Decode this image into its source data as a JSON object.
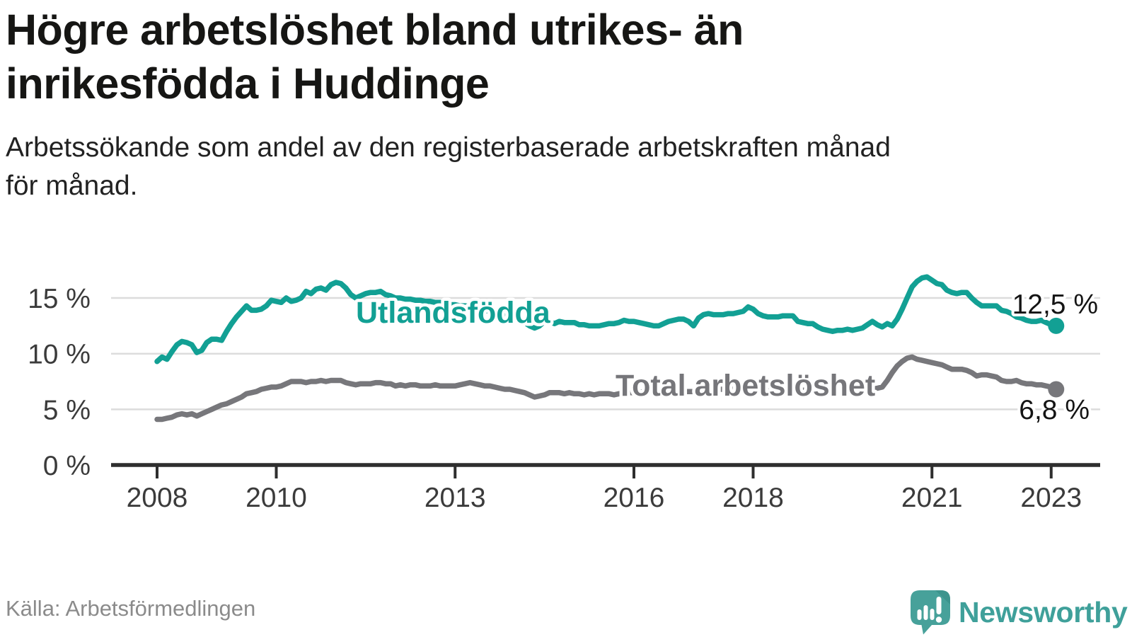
{
  "header": {
    "title_lines": [
      "Högre arbetslöshet bland utrikes- än",
      "inrikesfödda i Huddinge"
    ],
    "subtitle_lines": [
      "Arbetssökande som andel av den registerbaserade arbetskraften månad",
      "för månad."
    ]
  },
  "footer": {
    "source": "Källa: Arbetsförmedlingen",
    "brand": "Newsworthy",
    "brand_icon": "newsworthy-speech-bubble-bar-chart-icon",
    "brand_color": "#3fa09a"
  },
  "colors": {
    "background": "#ffffff",
    "gridline": "#dcdcdc",
    "axis": "#2e2e2e",
    "tick_text": "#3b3b3b",
    "title_text": "#161614",
    "source_text": "#8b8b8b"
  },
  "chart_data": {
    "type": "line",
    "title": "Högre arbetslöshet bland utrikes- än inrikesfödda i Huddinge",
    "subtitle": "Arbetssökande som andel av den registerbaserade arbetskraften månad för månad.",
    "xlabel": "",
    "ylabel": "",
    "grid": "horizontal",
    "legend_position": "inline-labels",
    "x_start_year": 2008,
    "x_step_months": 1,
    "x_end": "2023-02",
    "x_tick_years": [
      2008,
      2010,
      2013,
      2016,
      2018,
      2021,
      2023
    ],
    "x_tick_labels": [
      "2008",
      "2010",
      "2013",
      "2016",
      "2018",
      "2021",
      "2023"
    ],
    "y_ticks": [
      0,
      5,
      10,
      15
    ],
    "y_tick_labels": [
      "0 %",
      "5 %",
      "10 %",
      "15 %"
    ],
    "ylim": [
      0,
      17.6
    ],
    "series": [
      {
        "name": "Utlandsfödda",
        "color": "#12a094",
        "end_label": "12,5 %",
        "end_value": 12.5,
        "values": [
          9.3,
          9.7,
          9.5,
          10.2,
          10.8,
          11.1,
          11.0,
          10.8,
          10.1,
          10.3,
          11.0,
          11.3,
          11.3,
          11.2,
          12.0,
          12.7,
          13.3,
          13.8,
          14.3,
          13.9,
          13.9,
          14.0,
          14.3,
          14.8,
          14.7,
          14.6,
          15.0,
          14.7,
          14.8,
          15.0,
          15.6,
          15.4,
          15.8,
          15.9,
          15.7,
          16.2,
          16.4,
          16.3,
          15.9,
          15.3,
          15.0,
          15.2,
          15.4,
          15.5,
          15.5,
          15.6,
          15.3,
          15.2,
          15.0,
          15.0,
          14.9,
          14.9,
          14.8,
          14.8,
          14.7,
          14.7,
          14.6,
          14.6,
          14.5,
          14.4,
          14.4,
          14.3,
          14.3,
          14.2,
          14.1,
          14.0,
          13.9,
          13.8,
          13.7,
          13.6,
          13.5,
          13.3,
          13.2,
          13.0,
          12.8,
          12.5,
          12.3,
          12.5,
          12.9,
          12.9,
          12.7,
          12.9,
          12.8,
          12.8,
          12.8,
          12.6,
          12.6,
          12.5,
          12.5,
          12.5,
          12.6,
          12.7,
          12.7,
          12.8,
          13.0,
          12.9,
          12.9,
          12.8,
          12.7,
          12.6,
          12.5,
          12.5,
          12.7,
          12.9,
          13.0,
          13.1,
          13.1,
          12.9,
          12.5,
          13.2,
          13.5,
          13.6,
          13.5,
          13.5,
          13.5,
          13.6,
          13.6,
          13.7,
          13.8,
          14.2,
          14.0,
          13.6,
          13.4,
          13.3,
          13.3,
          13.3,
          13.4,
          13.4,
          13.4,
          12.9,
          12.8,
          12.7,
          12.7,
          12.4,
          12.2,
          12.1,
          12.0,
          12.1,
          12.1,
          12.2,
          12.1,
          12.2,
          12.3,
          12.6,
          12.9,
          12.6,
          12.4,
          12.7,
          12.5,
          13.1,
          14.0,
          15.0,
          16.0,
          16.5,
          16.8,
          16.9,
          16.6,
          16.3,
          16.2,
          15.7,
          15.5,
          15.4,
          15.5,
          15.5,
          15.0,
          14.6,
          14.3,
          14.3,
          14.3,
          14.3,
          13.9,
          13.8,
          13.6,
          13.3,
          13.2,
          13.0,
          12.9,
          12.9,
          13.0,
          12.8,
          12.6,
          12.5
        ]
      },
      {
        "name": "Total arbetslöshet",
        "color": "#77777b",
        "end_label": "6,8 %",
        "end_value": 6.8,
        "values": [
          4.1,
          4.1,
          4.2,
          4.3,
          4.5,
          4.6,
          4.5,
          4.6,
          4.4,
          4.6,
          4.8,
          5.0,
          5.2,
          5.4,
          5.5,
          5.7,
          5.9,
          6.1,
          6.4,
          6.5,
          6.6,
          6.8,
          6.9,
          7.0,
          7.0,
          7.1,
          7.3,
          7.5,
          7.5,
          7.5,
          7.4,
          7.5,
          7.5,
          7.6,
          7.5,
          7.6,
          7.6,
          7.6,
          7.4,
          7.3,
          7.2,
          7.3,
          7.3,
          7.3,
          7.4,
          7.4,
          7.3,
          7.3,
          7.1,
          7.2,
          7.1,
          7.2,
          7.2,
          7.1,
          7.1,
          7.1,
          7.2,
          7.1,
          7.1,
          7.1,
          7.1,
          7.2,
          7.3,
          7.4,
          7.3,
          7.2,
          7.1,
          7.1,
          7.0,
          6.9,
          6.8,
          6.8,
          6.7,
          6.6,
          6.5,
          6.3,
          6.1,
          6.2,
          6.3,
          6.5,
          6.5,
          6.5,
          6.4,
          6.5,
          6.4,
          6.4,
          6.3,
          6.4,
          6.3,
          6.4,
          6.4,
          6.4,
          6.3,
          6.4,
          6.4,
          6.5,
          6.5,
          6.6,
          6.5,
          6.6,
          6.6,
          6.6,
          6.6,
          6.7,
          6.6,
          6.7,
          6.6,
          6.6,
          6.6,
          6.7,
          6.7,
          6.8,
          6.7,
          6.8,
          6.8,
          6.9,
          6.8,
          6.9,
          6.9,
          7.0,
          6.9,
          6.9,
          6.8,
          6.9,
          6.8,
          6.8,
          6.8,
          6.9,
          6.8,
          6.8,
          6.7,
          6.8,
          6.7,
          6.7,
          6.6,
          6.6,
          6.6,
          6.7,
          6.6,
          6.6,
          6.6,
          6.7,
          6.7,
          6.8,
          6.8,
          6.9,
          7.0,
          7.6,
          8.3,
          8.9,
          9.3,
          9.6,
          9.7,
          9.5,
          9.4,
          9.3,
          9.2,
          9.1,
          9.0,
          8.8,
          8.6,
          8.6,
          8.6,
          8.5,
          8.3,
          8.0,
          8.1,
          8.1,
          8.0,
          7.9,
          7.6,
          7.5,
          7.5,
          7.6,
          7.4,
          7.3,
          7.3,
          7.2,
          7.2,
          7.1,
          7.0,
          6.8
        ]
      }
    ]
  }
}
